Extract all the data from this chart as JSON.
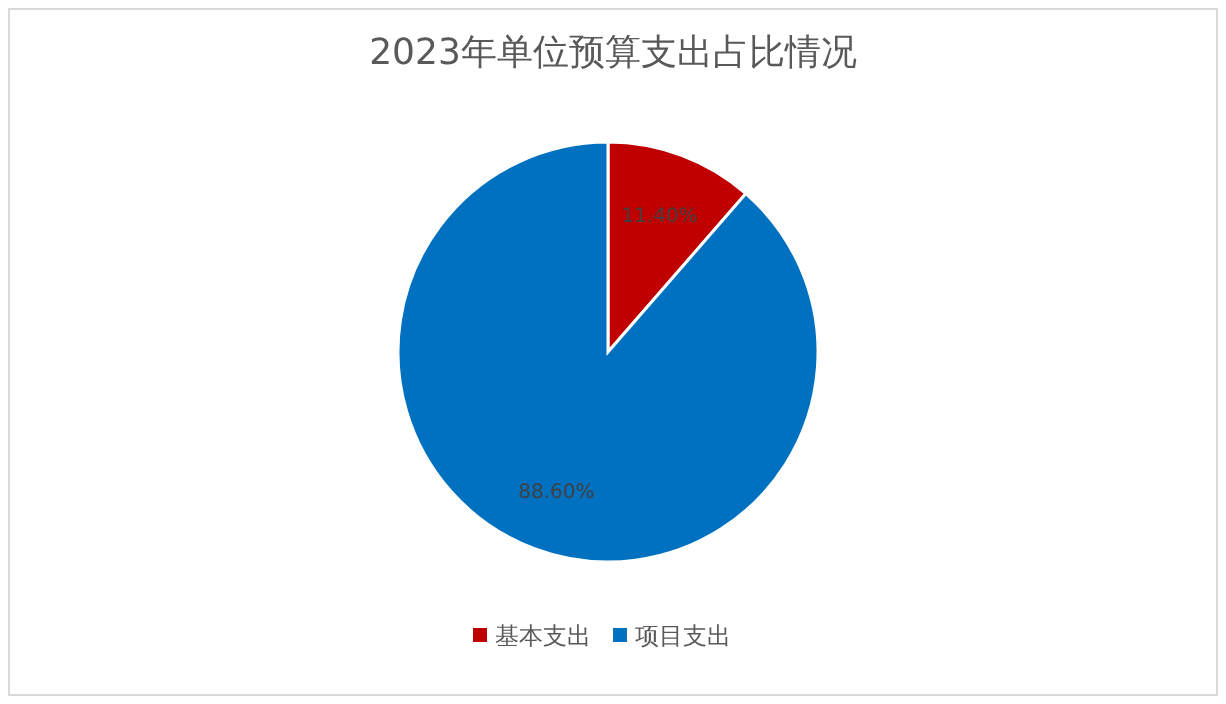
{
  "chart_data": {
    "type": "pie",
    "title": "2023年单位预算支出占比情况",
    "categories": [
      "基本支出",
      "项目支出"
    ],
    "values": [
      11.4,
      88.6
    ],
    "colors": [
      "#c00000",
      "#0070c0"
    ],
    "value_labels": [
      "11.40%",
      "88.60%"
    ],
    "legend": "bottom"
  }
}
